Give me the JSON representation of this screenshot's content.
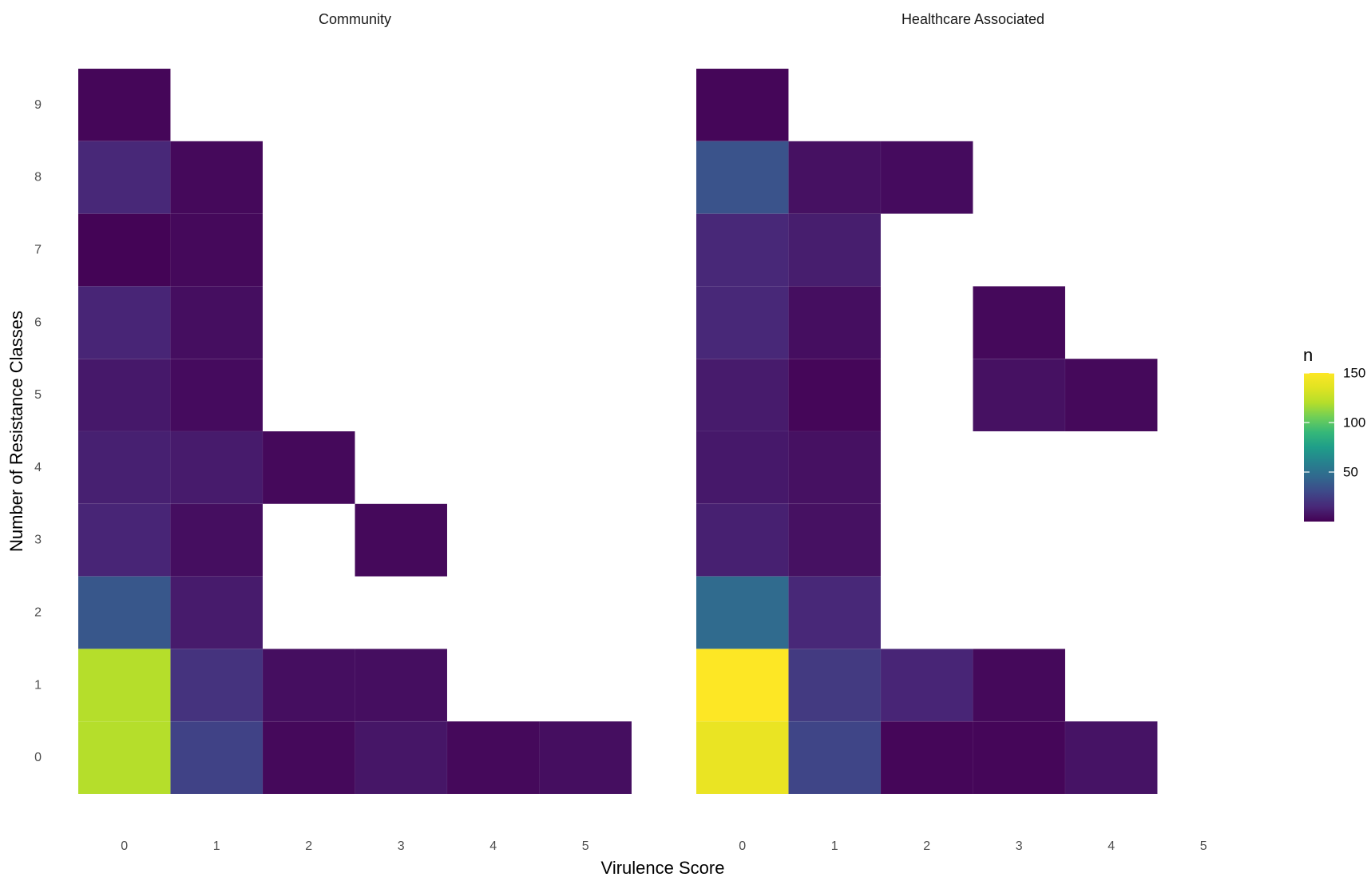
{
  "chart_data": {
    "type": "heatmap",
    "xlabel": "Virulence Score",
    "ylabel": "Number of Resistance Classes",
    "x_categories": [
      "0",
      "1",
      "2",
      "3",
      "4",
      "5"
    ],
    "y_categories": [
      "0",
      "1",
      "2",
      "3",
      "4",
      "5",
      "6",
      "7",
      "8",
      "9"
    ],
    "color_scale": {
      "name": "viridis",
      "title": "n",
      "min": 0,
      "max": 150,
      "ticks": [
        50,
        100,
        150
      ]
    },
    "facets": [
      {
        "title": "Community",
        "cells": [
          {
            "x": 0,
            "y": 9,
            "n": 2
          },
          {
            "x": 0,
            "y": 8,
            "n": 15
          },
          {
            "x": 1,
            "y": 8,
            "n": 3
          },
          {
            "x": 0,
            "y": 7,
            "n": 1
          },
          {
            "x": 1,
            "y": 7,
            "n": 3
          },
          {
            "x": 0,
            "y": 6,
            "n": 14
          },
          {
            "x": 1,
            "y": 6,
            "n": 5
          },
          {
            "x": 0,
            "y": 5,
            "n": 9
          },
          {
            "x": 1,
            "y": 5,
            "n": 4
          },
          {
            "x": 0,
            "y": 4,
            "n": 12
          },
          {
            "x": 1,
            "y": 4,
            "n": 10
          },
          {
            "x": 2,
            "y": 4,
            "n": 3
          },
          {
            "x": 0,
            "y": 3,
            "n": 14
          },
          {
            "x": 1,
            "y": 3,
            "n": 5
          },
          {
            "x": 3,
            "y": 3,
            "n": 3
          },
          {
            "x": 0,
            "y": 2,
            "n": 37
          },
          {
            "x": 1,
            "y": 2,
            "n": 10
          },
          {
            "x": 0,
            "y": 1,
            "n": 120
          },
          {
            "x": 1,
            "y": 1,
            "n": 20
          },
          {
            "x": 2,
            "y": 1,
            "n": 5
          },
          {
            "x": 3,
            "y": 1,
            "n": 5
          },
          {
            "x": 0,
            "y": 0,
            "n": 120
          },
          {
            "x": 1,
            "y": 0,
            "n": 27
          },
          {
            "x": 2,
            "y": 0,
            "n": 3
          },
          {
            "x": 3,
            "y": 0,
            "n": 8
          },
          {
            "x": 4,
            "y": 0,
            "n": 3
          },
          {
            "x": 5,
            "y": 0,
            "n": 5
          }
        ]
      },
      {
        "title": "Healthcare Associated",
        "cells": [
          {
            "x": 0,
            "y": 9,
            "n": 2
          },
          {
            "x": 0,
            "y": 8,
            "n": 35
          },
          {
            "x": 1,
            "y": 8,
            "n": 6
          },
          {
            "x": 2,
            "y": 8,
            "n": 4
          },
          {
            "x": 0,
            "y": 7,
            "n": 15
          },
          {
            "x": 1,
            "y": 7,
            "n": 11
          },
          {
            "x": 0,
            "y": 6,
            "n": 15
          },
          {
            "x": 1,
            "y": 6,
            "n": 5
          },
          {
            "x": 3,
            "y": 6,
            "n": 3
          },
          {
            "x": 0,
            "y": 5,
            "n": 10
          },
          {
            "x": 1,
            "y": 5,
            "n": 2
          },
          {
            "x": 3,
            "y": 5,
            "n": 6
          },
          {
            "x": 4,
            "y": 5,
            "n": 3
          },
          {
            "x": 0,
            "y": 4,
            "n": 9
          },
          {
            "x": 1,
            "y": 4,
            "n": 6
          },
          {
            "x": 0,
            "y": 3,
            "n": 12
          },
          {
            "x": 1,
            "y": 3,
            "n": 6
          },
          {
            "x": 0,
            "y": 2,
            "n": 47
          },
          {
            "x": 1,
            "y": 2,
            "n": 15
          },
          {
            "x": 0,
            "y": 1,
            "n": 160
          },
          {
            "x": 1,
            "y": 1,
            "n": 23
          },
          {
            "x": 2,
            "y": 1,
            "n": 14
          },
          {
            "x": 3,
            "y": 1,
            "n": 3
          },
          {
            "x": 0,
            "y": 0,
            "n": 140
          },
          {
            "x": 1,
            "y": 0,
            "n": 28
          },
          {
            "x": 2,
            "y": 0,
            "n": 2
          },
          {
            "x": 3,
            "y": 0,
            "n": 2
          },
          {
            "x": 4,
            "y": 0,
            "n": 7
          }
        ]
      }
    ]
  }
}
